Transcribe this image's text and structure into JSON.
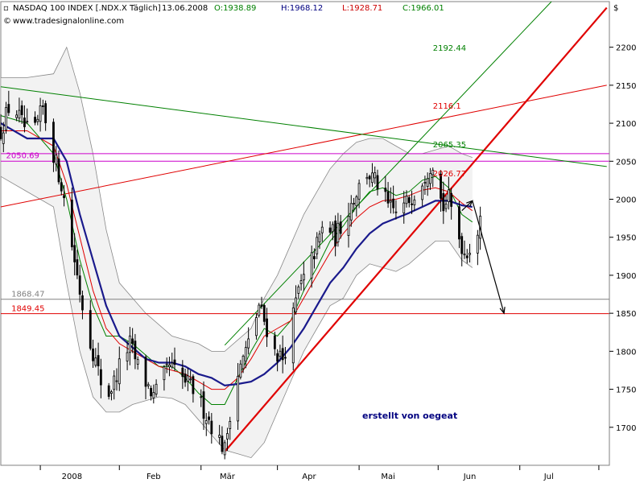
{
  "header": {
    "instrument": "NASDAQ 100 INDEX [.NDX.X  Täglich]",
    "date": "13.06.2008",
    "open": "O:1938.89",
    "high": "H:1968.12",
    "low": "L:1928.71",
    "close": "C:1966.01",
    "website": "www.tradesignalonline.com",
    "currency_symbol": "$"
  },
  "watermark": "erstellt von oegeat",
  "colors": {
    "up_candle": "#ffffff",
    "down_candle": "#000000",
    "sma_blue": "#1a1a8c",
    "ema_red": "#e00000",
    "ema_green": "#008000",
    "band_fill": "#e8e8e8",
    "band_line": "#888888",
    "trend_red_thick": "#e00000",
    "trend_red_thin": "#e00000",
    "trend_green": "#008000",
    "level_magenta": "#cc00cc",
    "level_red": "#e00000",
    "level_gray": "#808080",
    "watermark": "#000080"
  },
  "chart_data": {
    "type": "candlestick",
    "title": "NASDAQ 100 INDEX [.NDX.X Täglich]",
    "ylim": [
      1650,
      2260
    ],
    "yticks": [
      1700,
      1750,
      1800,
      1850,
      1900,
      1950,
      2000,
      2050,
      2100,
      2150,
      2200
    ],
    "x_labels": [
      "2008",
      "Feb",
      "Mär",
      "Apr",
      "Mai",
      "Jun",
      "Jul"
    ],
    "x_label_days": [
      7,
      38,
      66,
      97,
      127,
      158,
      188
    ],
    "x_month_boundaries": [
      -5,
      25,
      56,
      85,
      116,
      146,
      177,
      207
    ],
    "x_range": [
      -20,
      211
    ],
    "last_bar_day": 162,
    "levels": [
      {
        "label": "2192.44",
        "value": 2192.44,
        "color_key": "ema_green",
        "label_day": 144
      },
      {
        "label": "2116.1",
        "value": 2116.1,
        "color_key": "ema_red",
        "label_day": 144
      },
      {
        "label": "2065.35",
        "value": 2065.35,
        "color_key": "ema_green",
        "label_day": 144
      },
      {
        "label": "2050.69",
        "value": 2050.69,
        "color_key": "level_magenta",
        "label_day": -18
      },
      {
        "label": "2026.77",
        "value": 2026.77,
        "color_key": "ema_red",
        "label_day": 144
      },
      {
        "label": "1868.47",
        "value": 1868.47,
        "color_key": "level_gray",
        "label_day": -16
      },
      {
        "label": "1849.45",
        "value": 1849.45,
        "color_key": "ema_red",
        "label_day": -16
      }
    ],
    "hlines": [
      {
        "value": 2060,
        "color_key": "level_magenta"
      },
      {
        "value": 2050,
        "color_key": "level_magenta"
      },
      {
        "value": 1868.47,
        "color_key": "level_gray"
      },
      {
        "value": 1849.45,
        "color_key": "level_red"
      }
    ],
    "trendlines": [
      {
        "name": "support",
        "from": [
          65,
          1668
        ],
        "to": [
          210,
          2252
        ],
        "color_key": "trend_red_thick",
        "width": 2.2
      },
      {
        "name": "upper_red",
        "from": [
          -20,
          1990
        ],
        "to": [
          210,
          2150
        ],
        "color_key": "trend_red_thin",
        "width": 1
      },
      {
        "name": "green_down",
        "from": [
          -20,
          2148
        ],
        "to": [
          210,
          2043
        ],
        "color_key": "trend_green",
        "width": 1
      },
      {
        "name": "green_up",
        "from": [
          65,
          1808
        ],
        "to": [
          189,
          2260
        ],
        "color_key": "trend_green",
        "width": 1
      }
    ],
    "arrows": [
      {
        "points": [
          [
            155,
            1985
          ],
          [
            159,
            1998
          ]
        ]
      },
      {
        "points": [
          [
            159,
            1998
          ],
          [
            171,
            1850
          ]
        ]
      }
    ],
    "anchors": [
      [
        -20,
        2090
      ],
      [
        -16,
        2130
      ],
      [
        -12,
        2100
      ],
      [
        -8,
        2080
      ],
      [
        -4,
        2120
      ],
      [
        0,
        2060
      ],
      [
        3,
        2020
      ],
      [
        6,
        1960
      ],
      [
        9,
        1900
      ],
      [
        12,
        1840
      ],
      [
        15,
        1800
      ],
      [
        18,
        1760
      ],
      [
        21,
        1745
      ],
      [
        23,
        1760
      ],
      [
        26,
        1790
      ],
      [
        29,
        1810
      ],
      [
        32,
        1780
      ],
      [
        35,
        1760
      ],
      [
        38,
        1740
      ],
      [
        41,
        1760
      ],
      [
        44,
        1780
      ],
      [
        47,
        1770
      ],
      [
        50,
        1760
      ],
      [
        53,
        1750
      ],
      [
        56,
        1730
      ],
      [
        59,
        1710
      ],
      [
        62,
        1690
      ],
      [
        65,
        1670
      ],
      [
        67,
        1720
      ],
      [
        69,
        1760
      ],
      [
        72,
        1790
      ],
      [
        75,
        1820
      ],
      [
        78,
        1860
      ],
      [
        81,
        1830
      ],
      [
        84,
        1800
      ],
      [
        87,
        1790
      ],
      [
        90,
        1830
      ],
      [
        93,
        1880
      ],
      [
        96,
        1900
      ],
      [
        99,
        1930
      ],
      [
        103,
        1970
      ],
      [
        107,
        1950
      ],
      [
        111,
        1980
      ],
      [
        115,
        2010
      ],
      [
        119,
        2035
      ],
      [
        123,
        2020
      ],
      [
        127,
        1990
      ],
      [
        131,
        1980
      ],
      [
        135,
        2000
      ],
      [
        139,
        2020
      ],
      [
        142,
        2040
      ],
      [
        144,
        2050
      ],
      [
        146,
        2010
      ],
      [
        148,
        1990
      ],
      [
        150,
        2000
      ],
      [
        153,
        1960
      ],
      [
        156,
        1930
      ],
      [
        159,
        1940
      ],
      [
        162,
        1966
      ]
    ],
    "indicators": {
      "sma_blue": [
        [
          -20,
          2100
        ],
        [
          -10,
          2080
        ],
        [
          0,
          2080
        ],
        [
          5,
          2050
        ],
        [
          10,
          1980
        ],
        [
          15,
          1920
        ],
        [
          20,
          1860
        ],
        [
          25,
          1820
        ],
        [
          30,
          1805
        ],
        [
          35,
          1790
        ],
        [
          40,
          1785
        ],
        [
          45,
          1785
        ],
        [
          50,
          1780
        ],
        [
          55,
          1770
        ],
        [
          60,
          1765
        ],
        [
          65,
          1755
        ],
        [
          70,
          1757
        ],
        [
          75,
          1760
        ],
        [
          80,
          1770
        ],
        [
          85,
          1785
        ],
        [
          90,
          1805
        ],
        [
          95,
          1830
        ],
        [
          100,
          1860
        ],
        [
          105,
          1890
        ],
        [
          110,
          1910
        ],
        [
          115,
          1935
        ],
        [
          120,
          1955
        ],
        [
          125,
          1968
        ],
        [
          130,
          1975
        ],
        [
          135,
          1982
        ],
        [
          140,
          1990
        ],
        [
          145,
          1998
        ],
        [
          150,
          1998
        ],
        [
          155,
          1992
        ],
        [
          159,
          1990
        ]
      ],
      "ema_red": [
        [
          -20,
          2090
        ],
        [
          -10,
          2090
        ],
        [
          0,
          2070
        ],
        [
          5,
          2020
        ],
        [
          10,
          1950
        ],
        [
          15,
          1880
        ],
        [
          20,
          1830
        ],
        [
          25,
          1810
        ],
        [
          30,
          1800
        ],
        [
          35,
          1790
        ],
        [
          40,
          1780
        ],
        [
          45,
          1775
        ],
        [
          50,
          1770
        ],
        [
          55,
          1760
        ],
        [
          60,
          1750
        ],
        [
          65,
          1750
        ],
        [
          70,
          1765
        ],
        [
          75,
          1790
        ],
        [
          80,
          1820
        ],
        [
          85,
          1830
        ],
        [
          90,
          1840
        ],
        [
          95,
          1870
        ],
        [
          100,
          1900
        ],
        [
          105,
          1930
        ],
        [
          110,
          1955
        ],
        [
          115,
          1975
        ],
        [
          120,
          1990
        ],
        [
          125,
          1998
        ],
        [
          130,
          2000
        ],
        [
          135,
          2005
        ],
        [
          140,
          2012
        ],
        [
          145,
          2015
        ],
        [
          150,
          2010
        ],
        [
          155,
          1995
        ],
        [
          159,
          1985
        ]
      ],
      "ema_green": [
        [
          -20,
          2110
        ],
        [
          -10,
          2100
        ],
        [
          0,
          2060
        ],
        [
          5,
          2000
        ],
        [
          10,
          1920
        ],
        [
          15,
          1860
        ],
        [
          20,
          1820
        ],
        [
          25,
          1820
        ],
        [
          30,
          1810
        ],
        [
          35,
          1795
        ],
        [
          40,
          1780
        ],
        [
          45,
          1780
        ],
        [
          50,
          1765
        ],
        [
          55,
          1745
        ],
        [
          60,
          1730
        ],
        [
          65,
          1730
        ],
        [
          70,
          1765
        ],
        [
          75,
          1800
        ],
        [
          80,
          1830
        ],
        [
          85,
          1820
        ],
        [
          90,
          1840
        ],
        [
          95,
          1880
        ],
        [
          100,
          1910
        ],
        [
          105,
          1945
        ],
        [
          110,
          1965
        ],
        [
          115,
          1990
        ],
        [
          120,
          2010
        ],
        [
          125,
          2015
        ],
        [
          130,
          2005
        ],
        [
          135,
          2010
        ],
        [
          140,
          2025
        ],
        [
          145,
          2030
        ],
        [
          150,
          2015
        ],
        [
          155,
          1980
        ],
        [
          159,
          1970
        ]
      ],
      "band_upper": [
        [
          -20,
          2160
        ],
        [
          -10,
          2160
        ],
        [
          0,
          2165
        ],
        [
          5,
          2200
        ],
        [
          10,
          2140
        ],
        [
          15,
          2060
        ],
        [
          20,
          1960
        ],
        [
          25,
          1890
        ],
        [
          30,
          1870
        ],
        [
          35,
          1850
        ],
        [
          40,
          1835
        ],
        [
          45,
          1820
        ],
        [
          50,
          1815
        ],
        [
          55,
          1810
        ],
        [
          60,
          1800
        ],
        [
          65,
          1800
        ],
        [
          70,
          1815
        ],
        [
          75,
          1830
        ],
        [
          80,
          1870
        ],
        [
          85,
          1900
        ],
        [
          90,
          1940
        ],
        [
          95,
          1980
        ],
        [
          100,
          2010
        ],
        [
          105,
          2040
        ],
        [
          110,
          2060
        ],
        [
          115,
          2075
        ],
        [
          120,
          2080
        ],
        [
          125,
          2080
        ],
        [
          130,
          2070
        ],
        [
          135,
          2060
        ],
        [
          140,
          2060
        ],
        [
          145,
          2065
        ],
        [
          150,
          2070
        ],
        [
          155,
          2060
        ],
        [
          159,
          2055
        ]
      ],
      "band_lower": [
        [
          -20,
          2030
        ],
        [
          -10,
          2010
        ],
        [
          0,
          1990
        ],
        [
          5,
          1890
        ],
        [
          10,
          1800
        ],
        [
          15,
          1740
        ],
        [
          20,
          1720
        ],
        [
          25,
          1720
        ],
        [
          30,
          1730
        ],
        [
          35,
          1735
        ],
        [
          40,
          1740
        ],
        [
          45,
          1738
        ],
        [
          50,
          1730
        ],
        [
          55,
          1710
        ],
        [
          60,
          1690
        ],
        [
          65,
          1670
        ],
        [
          70,
          1665
        ],
        [
          75,
          1660
        ],
        [
          80,
          1680
        ],
        [
          85,
          1720
        ],
        [
          90,
          1760
        ],
        [
          95,
          1800
        ],
        [
          100,
          1830
        ],
        [
          105,
          1860
        ],
        [
          110,
          1870
        ],
        [
          115,
          1900
        ],
        [
          120,
          1915
        ],
        [
          125,
          1910
        ],
        [
          130,
          1905
        ],
        [
          135,
          1915
        ],
        [
          140,
          1930
        ],
        [
          145,
          1945
        ],
        [
          150,
          1945
        ],
        [
          155,
          1920
        ],
        [
          159,
          1910
        ]
      ]
    }
  }
}
